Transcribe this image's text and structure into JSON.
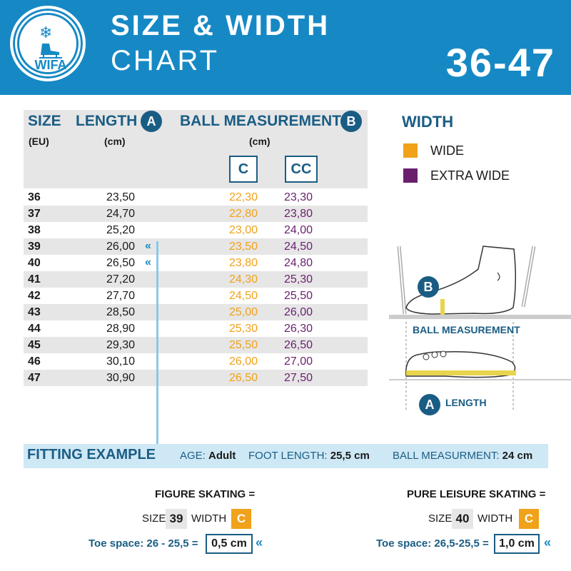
{
  "header": {
    "logo_text": "WIFA",
    "title_line1": "SIZE & WIDTH",
    "title_line2": "CHART",
    "range": "36-47",
    "color": "#1689c5"
  },
  "table": {
    "col_size": "SIZE",
    "col_size_unit": "(EU)",
    "col_length": "LENGTH",
    "col_length_badge": "A",
    "col_length_unit": "(cm)",
    "col_ball": "BALL MEASUREMENT",
    "col_ball_badge": "B",
    "col_ball_unit": "(cm)",
    "col_c": "C",
    "col_cc": "CC",
    "rows": [
      {
        "size": "36",
        "length": "23,50",
        "c": "22,30",
        "cc": "23,30"
      },
      {
        "size": "37",
        "length": "24,70",
        "c": "22,80",
        "cc": "23,80"
      },
      {
        "size": "38",
        "length": "25,20",
        "c": "23,00",
        "cc": "24,00"
      },
      {
        "size": "39",
        "length": "26,00",
        "c": "23,50",
        "cc": "24,50"
      },
      {
        "size": "40",
        "length": "26,50",
        "c": "23,80",
        "cc": "24,80"
      },
      {
        "size": "41",
        "length": "27,20",
        "c": "24,30",
        "cc": "25,30"
      },
      {
        "size": "42",
        "length": "27,70",
        "c": "24,50",
        "cc": "25,50"
      },
      {
        "size": "43",
        "length": "28,50",
        "c": "25,00",
        "cc": "26,00"
      },
      {
        "size": "44",
        "length": "28,90",
        "c": "25,30",
        "cc": "26,30"
      },
      {
        "size": "45",
        "length": "29,30",
        "c": "25,50",
        "cc": "26,50"
      },
      {
        "size": "46",
        "length": "30,10",
        "c": "26,00",
        "cc": "27,00"
      },
      {
        "size": "47",
        "length": "30,90",
        "c": "26,50",
        "cc": "27,50"
      }
    ]
  },
  "width_legend": {
    "title": "WIDTH",
    "items": [
      {
        "label": "WIDE",
        "color": "#f0a21a"
      },
      {
        "label": "EXTRA WIDE",
        "color": "#6a1f6e"
      }
    ]
  },
  "diagram": {
    "badge_b": "B",
    "badge_a": "A",
    "ball_label": "BALL MEASUREMENT",
    "length_label": "LENGTH"
  },
  "fitting": {
    "title": "FITTING EXAMPLE",
    "age_label": "AGE:",
    "age_value": "Adult",
    "foot_label": "FOOT LENGTH:",
    "foot_value": "25,5 cm",
    "ball_label": "BALL MEASURMENT:",
    "ball_value": "24 cm",
    "left": {
      "heading": "FIGURE SKATING =",
      "size_label": "SIZE",
      "size_value": "39",
      "width_label": "WIDTH",
      "width_value": "C",
      "toe_text": "Toe space: 26 - 25,5 =",
      "toe_result": "0,5 cm"
    },
    "right": {
      "heading": "PURE LEISURE SKATING =",
      "size_label": "SIZE",
      "size_value": "40",
      "width_label": "WIDTH",
      "width_value": "C",
      "toe_text": "Toe space: 26,5-25,5 =",
      "toe_result": "1,0 cm"
    }
  }
}
